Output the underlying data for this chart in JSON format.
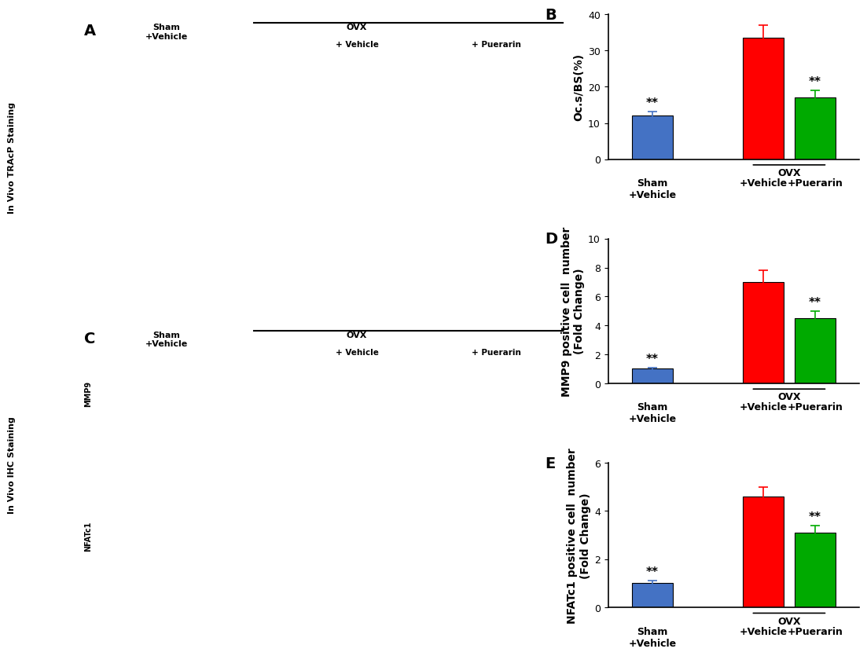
{
  "chart_B": {
    "label": "B",
    "values": [
      12.0,
      33.5,
      17.0
    ],
    "errors": [
      1.2,
      3.5,
      2.0
    ],
    "colors": [
      "#4472C4",
      "#FF0000",
      "#00AA00"
    ],
    "ylabel": "Oc.s/BS(%)",
    "ylim": [
      0,
      40
    ],
    "yticks": [
      0,
      10,
      20,
      30,
      40
    ],
    "significance": [
      "**",
      null,
      "**"
    ]
  },
  "chart_D": {
    "label": "D",
    "values": [
      1.0,
      7.0,
      4.5
    ],
    "errors": [
      0.1,
      0.8,
      0.5
    ],
    "colors": [
      "#4472C4",
      "#FF0000",
      "#00AA00"
    ],
    "ylabel": "MMP9 positive cell  number\n(Fold Change)",
    "ylim": [
      0,
      10
    ],
    "yticks": [
      0,
      2,
      4,
      6,
      8,
      10
    ],
    "significance": [
      "**",
      null,
      "**"
    ]
  },
  "chart_E": {
    "label": "E",
    "values": [
      1.0,
      4.6,
      3.1
    ],
    "errors": [
      0.1,
      0.4,
      0.3
    ],
    "colors": [
      "#4472C4",
      "#FF0000",
      "#00AA00"
    ],
    "ylabel": "NFATc1 positive cell  number\n(Fold Change)",
    "ylim": [
      0,
      6
    ],
    "yticks": [
      0,
      2,
      4,
      6
    ],
    "significance": [
      "**",
      null,
      "**"
    ]
  },
  "bg_color": "#FFFFFF",
  "label_fontsize": 14,
  "tick_fontsize": 9,
  "axis_label_fontsize": 10,
  "sig_fontsize": 11,
  "bar_width": 0.55
}
